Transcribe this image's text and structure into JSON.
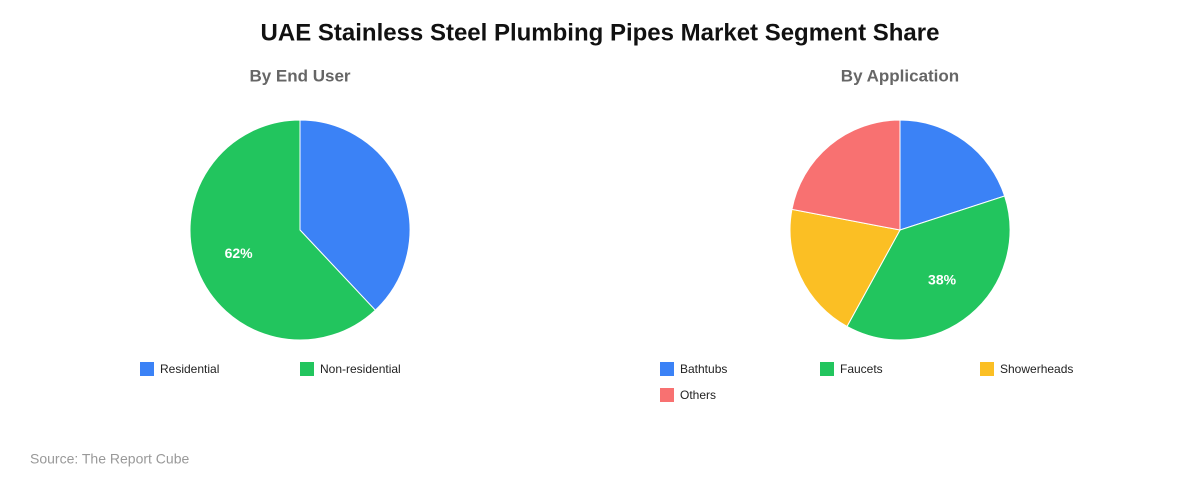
{
  "title": "UAE Stainless Steel Plumbing Pipes Market Segment Share",
  "source": "Source: The Report Cube",
  "chart_data": [
    {
      "type": "pie",
      "title": "By End User",
      "categories": [
        "Residential",
        "Non-residential"
      ],
      "values": [
        38,
        62
      ],
      "value_labels": [
        null,
        "62%"
      ],
      "colors": [
        "#3b82f6",
        "#22c55e"
      ]
    },
    {
      "type": "pie",
      "title": "By Application",
      "categories": [
        "Bathtubs",
        "Faucets",
        "Showerheads",
        "Others"
      ],
      "values": [
        20,
        38,
        20,
        22
      ],
      "value_labels": [
        null,
        "38%",
        null,
        null
      ],
      "colors": [
        "#3b82f6",
        "#22c55e",
        "#fbbf24",
        "#f87171"
      ]
    }
  ]
}
